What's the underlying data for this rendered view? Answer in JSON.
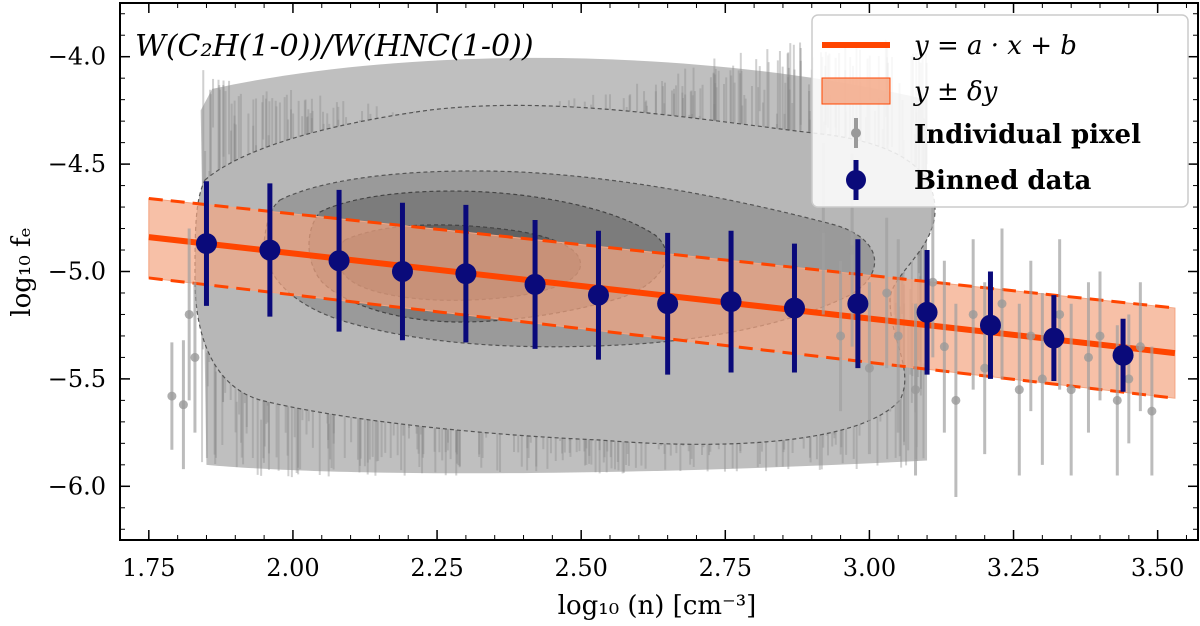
{
  "chart_data": {
    "type": "scatter",
    "title": "W(C₂H(1-0))/W(HNC(1-0))",
    "xlabel": "log₁₀ (n) [cm⁻³]",
    "ylabel": "log₁₀ fₑ",
    "xlim": [
      1.7,
      3.57
    ],
    "ylim": [
      -6.25,
      -3.75
    ],
    "xticks": [
      1.75,
      2.0,
      2.25,
      2.5,
      2.75,
      3.0,
      3.25,
      3.5
    ],
    "xtick_labels": [
      "1.75",
      "2.00",
      "2.25",
      "2.50",
      "2.75",
      "3.00",
      "3.25",
      "3.50"
    ],
    "yticks": [
      -4.0,
      -4.5,
      -5.0,
      -5.5,
      -6.0
    ],
    "ytick_labels": [
      "−4.0",
      "−4.5",
      "−5.0",
      "−5.5",
      "−6.0"
    ],
    "fit": {
      "name": "y = a · x + b",
      "x": [
        1.75,
        3.53
      ],
      "y": [
        -4.84,
        -5.38
      ],
      "band_upper": [
        -4.66,
        -5.17
      ],
      "band_lower": [
        -5.03,
        -5.59
      ],
      "color": "#ff4500",
      "band_color": "#f4a582"
    },
    "binned": {
      "name": "Binned data",
      "color": "#0a0a7a",
      "x": [
        1.85,
        1.96,
        2.08,
        2.19,
        2.3,
        2.42,
        2.53,
        2.65,
        2.76,
        2.87,
        2.98,
        3.1,
        3.21,
        3.32,
        3.44
      ],
      "y": [
        -4.87,
        -4.9,
        -4.95,
        -5.0,
        -5.01,
        -5.06,
        -5.11,
        -5.15,
        -5.14,
        -5.17,
        -5.15,
        -5.19,
        -5.25,
        -5.31,
        -5.39
      ],
      "err": [
        0.29,
        0.31,
        0.33,
        0.32,
        0.32,
        0.3,
        0.3,
        0.33,
        0.33,
        0.3,
        0.3,
        0.29,
        0.25,
        0.2,
        0.17
      ]
    },
    "pixels": {
      "name": "Individual pixel",
      "color": "#7f7f7f",
      "x": [
        1.79,
        1.81,
        1.83,
        1.82,
        2.92,
        2.95,
        2.97,
        3.0,
        3.03,
        3.05,
        3.08,
        3.11,
        3.13,
        3.15,
        3.18,
        3.2,
        3.23,
        3.26,
        3.28,
        3.3,
        3.33,
        3.35,
        3.38,
        3.4,
        3.43,
        3.45,
        3.47,
        3.49
      ],
      "y": [
        -5.58,
        -5.62,
        -5.4,
        -5.2,
        -4.8,
        -5.3,
        -4.9,
        -5.45,
        -5.1,
        -5.3,
        -5.55,
        -5.05,
        -5.35,
        -5.6,
        -5.2,
        -5.45,
        -5.15,
        -5.55,
        -5.3,
        -5.5,
        -5.2,
        -5.55,
        -5.4,
        -5.3,
        -5.6,
        -5.5,
        -5.35,
        -5.65
      ],
      "err": [
        0.25,
        0.3,
        0.35,
        0.4,
        0.4,
        0.35,
        0.45,
        0.4,
        0.35,
        0.45,
        0.4,
        0.35,
        0.4,
        0.45,
        0.35,
        0.4,
        0.35,
        0.4,
        0.35,
        0.4,
        0.35,
        0.4,
        0.35,
        0.3,
        0.35,
        0.3,
        0.3,
        0.3
      ]
    },
    "legend": {
      "placement": "top-right",
      "entries": [
        "y = a · x + b",
        "y ± δy",
        "Individual pixel",
        "Binned data"
      ]
    }
  }
}
